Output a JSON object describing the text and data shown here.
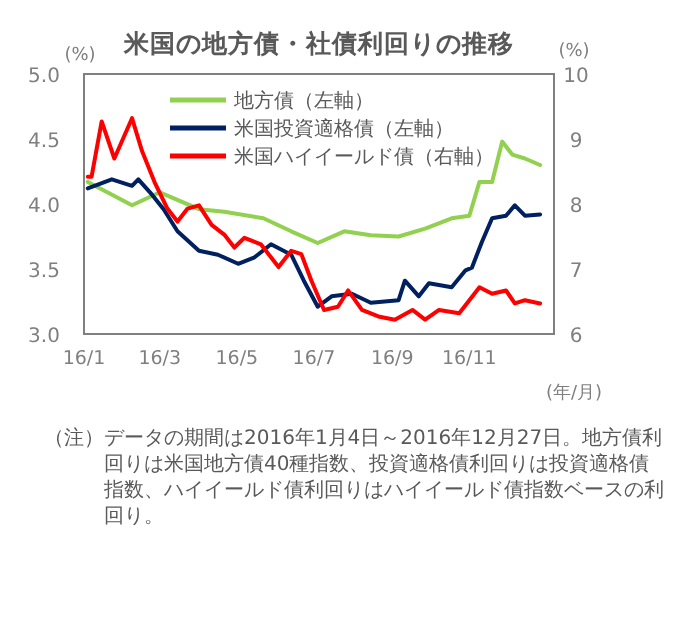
{
  "chart_data": {
    "type": "line",
    "title": "米国の地方債・社債利回りの推移",
    "ylabel": "(%)",
    "y2label": "(%)",
    "xlabel": "(年/月)",
    "xlim": [
      "2016-01-01",
      "2017-01-07"
    ],
    "xticks": [
      {
        "value": "2016-01-01",
        "label": "16/1"
      },
      {
        "value": "2016-03-01",
        "label": "16/3"
      },
      {
        "value": "2016-05-01",
        "label": "16/5"
      },
      {
        "value": "2016-07-01",
        "label": "16/7"
      },
      {
        "value": "2016-09-01",
        "label": "16/9"
      },
      {
        "value": "2016-11-01",
        "label": "16/11"
      }
    ],
    "ylim": [
      3.0,
      5.0
    ],
    "yticks": [
      {
        "value": 3,
        "label": "3.0"
      },
      {
        "value": 3.5,
        "label": "3.5"
      },
      {
        "value": 4,
        "label": "4.0"
      },
      {
        "value": 4.5,
        "label": "4.5"
      },
      {
        "value": 5,
        "label": "5.0"
      }
    ],
    "y2lim": [
      6,
      10
    ],
    "y2ticks": [
      6,
      7,
      8,
      9,
      10
    ],
    "legend": "top",
    "grid": false,
    "marker": "none",
    "line_style": "solid",
    "series": [
      {
        "name": "地方債（左軸）",
        "color": "#92d050",
        "axis": "y",
        "x": [
          "2016-01-04",
          "2016-02-08",
          "2016-03-01",
          "2016-04-01",
          "2016-04-21",
          "2016-05-22",
          "2016-06-13",
          "2016-07-04",
          "2016-07-25",
          "2016-08-15",
          "2016-09-06",
          "2016-09-27",
          "2016-10-18",
          "2016-11-01",
          "2016-11-09",
          "2016-11-19",
          "2016-11-27",
          "2016-12-05",
          "2016-12-15",
          "2016-12-27"
        ],
        "values": [
          4.17,
          3.99,
          4.09,
          3.96,
          3.94,
          3.89,
          3.79,
          3.7,
          3.79,
          3.76,
          3.75,
          3.81,
          3.89,
          3.91,
          4.17,
          4.17,
          4.48,
          4.38,
          4.35,
          4.3
        ]
      },
      {
        "name": "米国投資適格債（左軸）",
        "color": "#002060",
        "axis": "y",
        "x": [
          "2016-01-04",
          "2016-01-23",
          "2016-02-08",
          "2016-02-13",
          "2016-02-24",
          "2016-03-04",
          "2016-03-15",
          "2016-04-01",
          "2016-04-16",
          "2016-05-02",
          "2016-05-15",
          "2016-05-28",
          "2016-06-13",
          "2016-06-23",
          "2016-07-04",
          "2016-07-15",
          "2016-07-31",
          "2016-08-15",
          "2016-09-06",
          "2016-09-11",
          "2016-09-22",
          "2016-09-30",
          "2016-10-18",
          "2016-10-29",
          "2016-11-03",
          "2016-11-11",
          "2016-11-19",
          "2016-11-30",
          "2016-12-07",
          "2016-12-15",
          "2016-12-27"
        ],
        "values": [
          4.12,
          4.19,
          4.14,
          4.19,
          4.07,
          3.96,
          3.79,
          3.64,
          3.61,
          3.54,
          3.59,
          3.69,
          3.61,
          3.41,
          3.21,
          3.29,
          3.31,
          3.24,
          3.26,
          3.41,
          3.29,
          3.39,
          3.36,
          3.49,
          3.51,
          3.71,
          3.89,
          3.91,
          3.99,
          3.91,
          3.92
        ]
      },
      {
        "name": "米国ハイイールド債（右軸）",
        "color": "#ff0000",
        "axis": "y2",
        "x": [
          "2016-01-04",
          "2016-01-07",
          "2016-01-15",
          "2016-01-25",
          "2016-02-08",
          "2016-02-16",
          "2016-02-26",
          "2016-03-07",
          "2016-03-15",
          "2016-03-23",
          "2016-04-01",
          "2016-04-11",
          "2016-04-21",
          "2016-04-29",
          "2016-05-07",
          "2016-05-20",
          "2016-06-03",
          "2016-06-13",
          "2016-06-21",
          "2016-06-29",
          "2016-07-09",
          "2016-07-20",
          "2016-07-28",
          "2016-08-08",
          "2016-08-21",
          "2016-09-03",
          "2016-09-17",
          "2016-09-27",
          "2016-10-08",
          "2016-10-24",
          "2016-11-09",
          "2016-11-19",
          "2016-11-30",
          "2016-12-07",
          "2016-12-15",
          "2016-12-27"
        ],
        "values": [
          8.42,
          8.42,
          9.27,
          8.7,
          9.32,
          8.81,
          8.33,
          7.93,
          7.73,
          7.93,
          7.98,
          7.68,
          7.53,
          7.33,
          7.48,
          7.38,
          7.03,
          7.28,
          7.23,
          6.82,
          6.37,
          6.42,
          6.67,
          6.37,
          6.27,
          6.22,
          6.37,
          6.22,
          6.37,
          6.32,
          6.72,
          6.62,
          6.67,
          6.47,
          6.52,
          6.47
        ]
      }
    ],
    "annotations": [
      "（注）データの期間は2016年1月4日～2016年12月27日。地方債利回りは米国地方債40種指数、投資適格債利回りは投資適格債指数、ハイイールド債利回りはハイイールド債指数ベースの利回り。"
    ]
  }
}
